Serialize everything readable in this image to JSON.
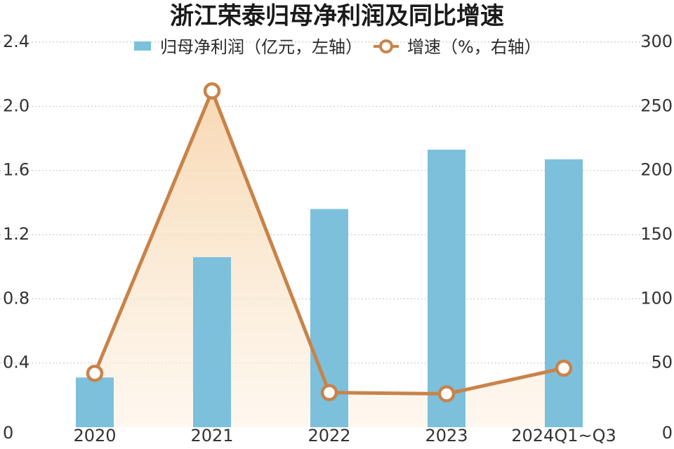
{
  "chart_data": {
    "type": "bar",
    "title": "浙江荣泰归母净利润及同比增速",
    "categories": [
      "2020",
      "2021",
      "2022",
      "2023",
      "2024Q1~Q3"
    ],
    "series": [
      {
        "name": "归母净利润（亿元，左轴）",
        "type": "bar",
        "axis": "left",
        "color": "#7cc0dc",
        "values": [
          0.31,
          1.06,
          1.36,
          1.73,
          1.67
        ]
      },
      {
        "name": "增速（%，右轴）",
        "type": "line",
        "axis": "right",
        "color": "#c8834a",
        "values": [
          42,
          262,
          27,
          26,
          46
        ]
      }
    ],
    "y_left": {
      "range": [
        0,
        2.4
      ],
      "ticks": [
        "0",
        "0.4",
        "0.8",
        "1.2",
        "1.6",
        "2.0",
        "2.4"
      ]
    },
    "y_right": {
      "range": [
        0,
        300
      ],
      "ticks": [
        "0",
        "50",
        "100",
        "150",
        "200",
        "250",
        "300"
      ]
    },
    "grid": true,
    "legend_position": "top-center",
    "area_fill_color": "#f7d9b4"
  }
}
